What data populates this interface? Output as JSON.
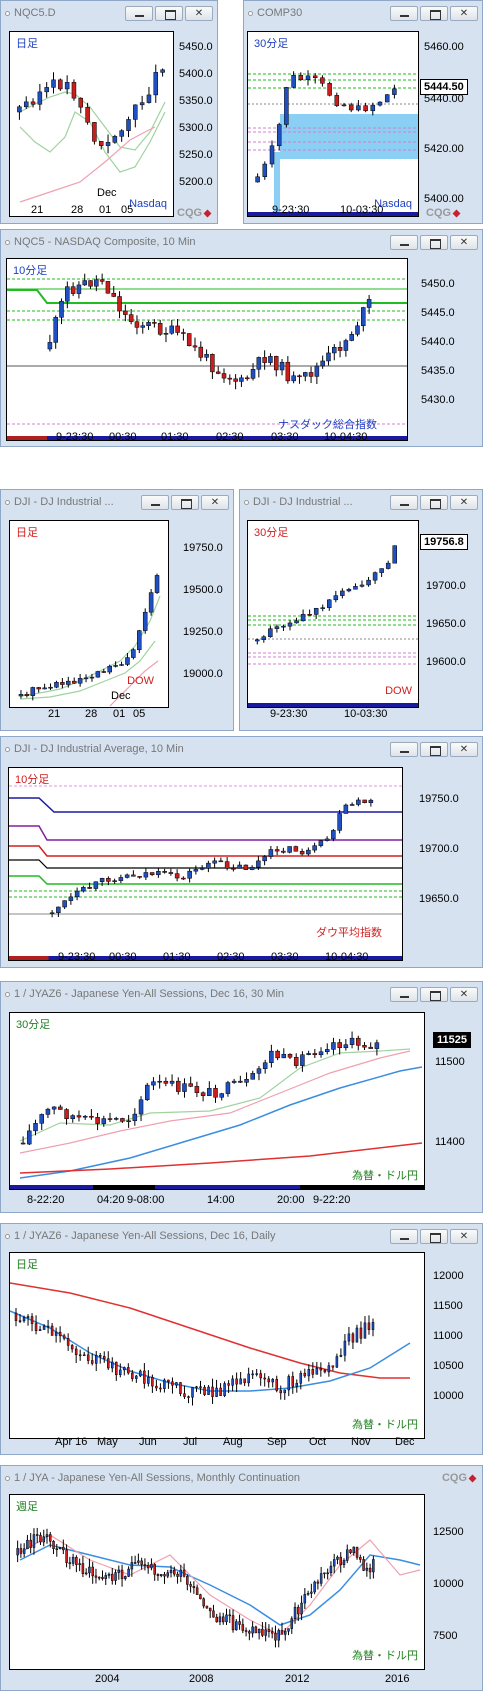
{
  "windows": [
    {
      "title": "NQC5.D",
      "period": "日足",
      "name": "Nasdaq",
      "yticks": [
        "5450.0",
        "5400.0",
        "5350.0",
        "5300.0",
        "5250.0",
        "5200.0"
      ],
      "xticks": [
        "21",
        "28",
        "01",
        "05"
      ],
      "xnote": "Dec"
    },
    {
      "title": "COMP30",
      "period": "30分足",
      "name": "Nasdaq",
      "yticks": [
        "5460.00",
        "5440.00",
        "5420.00",
        "5400.00"
      ],
      "last": "5444.50",
      "xticks": [
        "9-23:30",
        "10-03:30"
      ]
    },
    {
      "title": "NQC5 - NASDAQ Composite, 10 Min",
      "period": "10分足",
      "name": "ナスダック総合指数",
      "yticks": [
        "5450.0",
        "5445.0",
        "5440.0",
        "5435.0",
        "5430.0"
      ],
      "xticks": [
        "9-23:30",
        "00:30",
        "01:30",
        "02:30",
        "03:30",
        "10-04:30"
      ]
    },
    {
      "title": "DJI - DJ Industrial ...",
      "period": "日足",
      "name": "DOW",
      "yticks": [
        "19750.0",
        "19500.0",
        "19250.0",
        "19000.0"
      ],
      "xticks": [
        "21",
        "28",
        "01",
        "05"
      ],
      "xnote": "Dec"
    },
    {
      "title": "DJI - DJ Industrial ...",
      "period": "30分足",
      "name": "DOW",
      "yticks": [
        "19700.0",
        "19650.0",
        "19600.0"
      ],
      "last": "19756.8",
      "xticks": [
        "9-23:30",
        "10-03:30"
      ]
    },
    {
      "title": "DJI - DJ Industrial Average, 10 Min",
      "period": "10分足",
      "name": "ダウ平均指数",
      "yticks": [
        "19750.0",
        "19700.0",
        "19650.0"
      ],
      "xticks": [
        "9-23:30",
        "00:30",
        "01:30",
        "02:30",
        "03:30",
        "10-04:30"
      ]
    },
    {
      "title": "1 / JYAZ6 - Japanese Yen-All Sessions, Dec 16, 30 Min",
      "period": "30分足",
      "name": "為替・ドル円",
      "yticks": [
        "11500",
        "11400"
      ],
      "last": "11525",
      "xticks": [
        "8-22:20",
        "04:20",
        "9-08:00",
        "14:00",
        "20:00",
        "9-22:20"
      ]
    },
    {
      "title": "1 / JYAZ6 - Japanese Yen-All Sessions, Dec 16, Daily",
      "period": "日足",
      "name": "為替・ドル円",
      "yticks": [
        "12000",
        "11500",
        "11000",
        "10500",
        "10000"
      ],
      "xticks": [
        "Apr 16",
        "May",
        "Jun",
        "Jul",
        "Aug",
        "Sep",
        "Oct",
        "Nov",
        "Dec"
      ]
    },
    {
      "title": "1 / JYA - Japanese Yen-All Sessions, Monthly Continuation",
      "period": "週足",
      "name": "為替・ドル円",
      "yticks": [
        "12500",
        "10000",
        "7500"
      ],
      "xticks": [
        "2004",
        "2008",
        "2012",
        "2016"
      ]
    }
  ],
  "brand": "CQG",
  "colors": {
    "frame": "#d6e2f0",
    "up": "#2050c0",
    "down": "#c81e1e",
    "ma1": "#9fd39f",
    "ma2": "#f0a0b0",
    "ma3": "#3a8ee0",
    "ma4": "#e03030"
  }
}
